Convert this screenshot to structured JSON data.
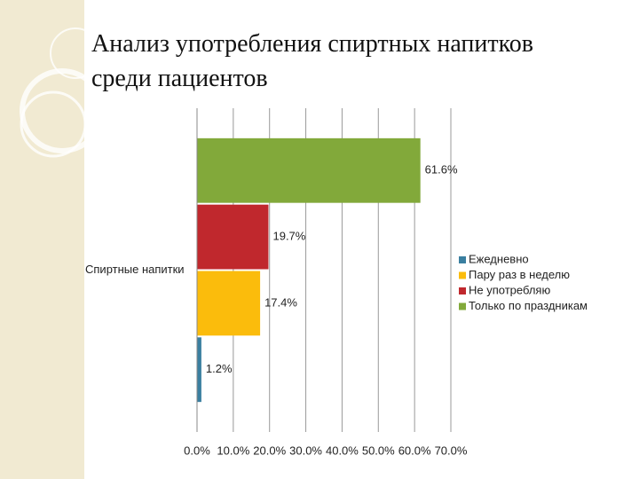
{
  "chart_data": {
    "type": "hbar",
    "title": "Анализ употребления спиртных напитков",
    "subtitle": "среди пациентов",
    "categories": [
      "Спиртные напитки"
    ],
    "series": [
      {
        "name": "Ежедневно",
        "color": "#3a7fa0",
        "values": [
          1.2
        ],
        "value_labels": [
          "1.2%"
        ]
      },
      {
        "name": "Пару раз в неделю",
        "color": "#fbbc0c",
        "values": [
          17.4
        ],
        "value_labels": [
          "17.4%"
        ]
      },
      {
        "name": "Не употребляю",
        "color": "#c0282d",
        "values": [
          19.7
        ],
        "value_labels": [
          "19.7%"
        ]
      },
      {
        "name": "Только по праздникам",
        "color": "#82a93a",
        "values": [
          61.6
        ],
        "value_labels": [
          "61.6%"
        ]
      }
    ],
    "xlim": [
      0,
      70
    ],
    "xticks": [
      {
        "value": 0,
        "label": "0.0%"
      },
      {
        "value": 10,
        "label": "10.0%"
      },
      {
        "value": 20,
        "label": "20.0%"
      },
      {
        "value": 30,
        "label": "30.0%"
      },
      {
        "value": 40,
        "label": "40.0%"
      },
      {
        "value": 50,
        "label": "50.0%"
      },
      {
        "value": 60,
        "label": "60.0%"
      },
      {
        "value": 70,
        "label": "70.0%"
      }
    ],
    "grid": true,
    "legend": "right"
  }
}
